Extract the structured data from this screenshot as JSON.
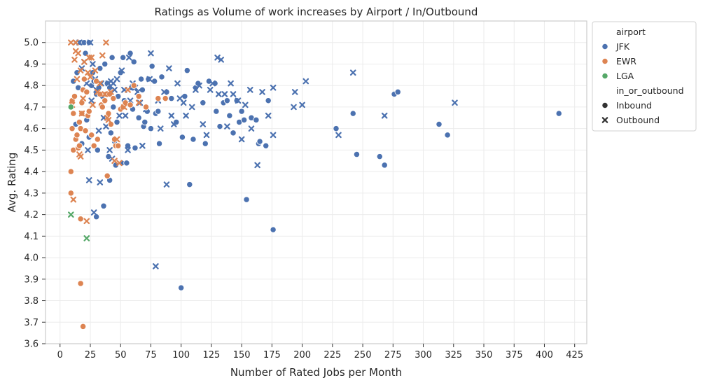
{
  "chart_data": {
    "type": "scatter",
    "title": "Ratings as Volume of work increases by Airport / In/Outbound",
    "xlabel": "Number of Rated Jobs per Month",
    "ylabel": "Avg. Rating",
    "xlim": [
      -12,
      435
    ],
    "ylim": [
      3.6,
      5.1
    ],
    "xticks": [
      0,
      25,
      50,
      75,
      100,
      125,
      150,
      175,
      200,
      225,
      250,
      275,
      300,
      325,
      350,
      375,
      400,
      425
    ],
    "yticks": [
      3.6,
      3.7,
      3.8,
      3.9,
      4.0,
      4.1,
      4.2,
      4.3,
      4.4,
      4.5,
      4.6,
      4.7,
      4.8,
      4.9,
      5.0
    ],
    "grid": true,
    "legend": {
      "placement": "outside-top-right",
      "hue_title": "airport",
      "style_title": "in_or_outbound",
      "hue_entries": [
        {
          "label": "JFK",
          "color": "#4c72b0"
        },
        {
          "label": "EWR",
          "color": "#dd8452"
        },
        {
          "label": "LGA",
          "color": "#55a868"
        }
      ],
      "style_entries": [
        {
          "label": "Inbound",
          "marker": "circle"
        },
        {
          "label": "Outbound",
          "marker": "x"
        }
      ]
    },
    "series": [
      {
        "airport": "JFK",
        "direction": "Inbound",
        "color": "#4c72b0",
        "marker": "circle",
        "points": [
          [
            11,
            4.82
          ],
          [
            13,
            4.62
          ],
          [
            14,
            4.86
          ],
          [
            15,
            4.79
          ],
          [
            17,
            5.0
          ],
          [
            18,
            4.53
          ],
          [
            20,
            5.0
          ],
          [
            21,
            4.95
          ],
          [
            22,
            4.64
          ],
          [
            24,
            5.0
          ],
          [
            24,
            4.56
          ],
          [
            26,
            4.8
          ],
          [
            27,
            4.86
          ],
          [
            28,
            4.82
          ],
          [
            30,
            4.76
          ],
          [
            30,
            4.19
          ],
          [
            31,
            4.5
          ],
          [
            32,
            4.79
          ],
          [
            33,
            4.88
          ],
          [
            35,
            4.75
          ],
          [
            36,
            4.24
          ],
          [
            37,
            4.9
          ],
          [
            39,
            4.81
          ],
          [
            40,
            4.47
          ],
          [
            41,
            4.79
          ],
          [
            41,
            4.36
          ],
          [
            42,
            4.58
          ],
          [
            43,
            4.93
          ],
          [
            44,
            4.7
          ],
          [
            45,
            4.54
          ],
          [
            46,
            4.43
          ],
          [
            47,
            4.63
          ],
          [
            48,
            4.75
          ],
          [
            50,
            4.86
          ],
          [
            51,
            4.44
          ],
          [
            52,
            4.93
          ],
          [
            53,
            4.73
          ],
          [
            55,
            4.44
          ],
          [
            56,
            4.52
          ],
          [
            58,
            4.95
          ],
          [
            59,
            4.79
          ],
          [
            60,
            4.69
          ],
          [
            61,
            4.91
          ],
          [
            62,
            4.51
          ],
          [
            65,
            4.65
          ],
          [
            67,
            4.83
          ],
          [
            68,
            4.78
          ],
          [
            69,
            4.61
          ],
          [
            70,
            4.63
          ],
          [
            72,
            4.68
          ],
          [
            73,
            4.83
          ],
          [
            75,
            4.6
          ],
          [
            76,
            4.89
          ],
          [
            78,
            4.82
          ],
          [
            79,
            4.67
          ],
          [
            81,
            4.68
          ],
          [
            82,
            4.53
          ],
          [
            84,
            4.84
          ],
          [
            88,
            4.77
          ],
          [
            92,
            4.74
          ],
          [
            96,
            4.63
          ],
          [
            100,
            3.86
          ],
          [
            101,
            4.56
          ],
          [
            103,
            4.75
          ],
          [
            105,
            4.87
          ],
          [
            107,
            4.34
          ],
          [
            110,
            4.55
          ],
          [
            112,
            4.79
          ],
          [
            114,
            4.81
          ],
          [
            118,
            4.72
          ],
          [
            120,
            4.53
          ],
          [
            123,
            4.82
          ],
          [
            128,
            4.81
          ],
          [
            129,
            4.68
          ],
          [
            132,
            4.61
          ],
          [
            135,
            4.72
          ],
          [
            138,
            4.73
          ],
          [
            140,
            4.66
          ],
          [
            143,
            4.58
          ],
          [
            146,
            4.73
          ],
          [
            148,
            4.63
          ],
          [
            150,
            4.68
          ],
          [
            152,
            4.64
          ],
          [
            154,
            4.27
          ],
          [
            158,
            4.65
          ],
          [
            162,
            4.64
          ],
          [
            164,
            4.53
          ],
          [
            165,
            4.54
          ],
          [
            170,
            4.52
          ],
          [
            172,
            4.73
          ],
          [
            176,
            4.13
          ],
          [
            228,
            4.6
          ],
          [
            242,
            4.67
          ],
          [
            245,
            4.48
          ],
          [
            264,
            4.47
          ],
          [
            268,
            4.43
          ],
          [
            276,
            4.76
          ],
          [
            279,
            4.77
          ],
          [
            313,
            4.62
          ],
          [
            320,
            4.57
          ],
          [
            412,
            4.67
          ]
        ]
      },
      {
        "airport": "JFK",
        "direction": "Outbound",
        "color": "#4c72b0",
        "marker": "x",
        "points": [
          [
            13,
            5.0
          ],
          [
            16,
            5.0
          ],
          [
            18,
            4.88
          ],
          [
            20,
            4.91
          ],
          [
            22,
            4.81
          ],
          [
            23,
            4.5
          ],
          [
            24,
            4.36
          ],
          [
            25,
            5.0
          ],
          [
            26,
            4.73
          ],
          [
            27,
            4.9
          ],
          [
            28,
            4.21
          ],
          [
            29,
            4.83
          ],
          [
            30,
            4.78
          ],
          [
            32,
            4.59
          ],
          [
            33,
            4.35
          ],
          [
            34,
            4.81
          ],
          [
            36,
            4.65
          ],
          [
            38,
            4.61
          ],
          [
            40,
            4.81
          ],
          [
            41,
            4.5
          ],
          [
            42,
            4.82
          ],
          [
            43,
            4.46
          ],
          [
            44,
            4.81
          ],
          [
            45,
            4.78
          ],
          [
            47,
            4.83
          ],
          [
            49,
            4.66
          ],
          [
            51,
            4.87
          ],
          [
            53,
            4.78
          ],
          [
            54,
            4.66
          ],
          [
            56,
            4.5
          ],
          [
            57,
            4.93
          ],
          [
            58,
            4.73
          ],
          [
            60,
            4.81
          ],
          [
            62,
            4.79
          ],
          [
            64,
            4.77
          ],
          [
            66,
            4.72
          ],
          [
            68,
            4.52
          ],
          [
            71,
            4.69
          ],
          [
            74,
            4.83
          ],
          [
            75,
            4.95
          ],
          [
            79,
            3.96
          ],
          [
            81,
            4.73
          ],
          [
            83,
            4.6
          ],
          [
            86,
            4.77
          ],
          [
            88,
            4.34
          ],
          [
            90,
            4.88
          ],
          [
            92,
            4.66
          ],
          [
            94,
            4.62
          ],
          [
            97,
            4.81
          ],
          [
            99,
            4.74
          ],
          [
            102,
            4.72
          ],
          [
            104,
            4.66
          ],
          [
            109,
            4.7
          ],
          [
            112,
            4.78
          ],
          [
            115,
            4.8
          ],
          [
            118,
            4.62
          ],
          [
            121,
            4.57
          ],
          [
            124,
            4.78
          ],
          [
            126,
            4.81
          ],
          [
            130,
            4.93
          ],
          [
            131,
            4.76
          ],
          [
            133,
            4.92
          ],
          [
            136,
            4.76
          ],
          [
            138,
            4.61
          ],
          [
            141,
            4.81
          ],
          [
            143,
            4.76
          ],
          [
            147,
            4.73
          ],
          [
            150,
            4.55
          ],
          [
            153,
            4.71
          ],
          [
            157,
            4.78
          ],
          [
            158,
            4.6
          ],
          [
            163,
            4.43
          ],
          [
            167,
            4.77
          ],
          [
            172,
            4.66
          ],
          [
            176,
            4.57
          ],
          [
            176,
            4.79
          ],
          [
            193,
            4.7
          ],
          [
            194,
            4.77
          ],
          [
            200,
            4.71
          ],
          [
            203,
            4.82
          ],
          [
            230,
            4.57
          ],
          [
            242,
            4.86
          ],
          [
            268,
            4.66
          ],
          [
            326,
            4.72
          ]
        ]
      },
      {
        "airport": "EWR",
        "direction": "Inbound",
        "color": "#dd8452",
        "marker": "circle",
        "points": [
          [
            9,
            4.4
          ],
          [
            9,
            4.3
          ],
          [
            10,
            4.6
          ],
          [
            10,
            4.73
          ],
          [
            11,
            4.5
          ],
          [
            11,
            4.67
          ],
          [
            12,
            4.75
          ],
          [
            13,
            4.55
          ],
          [
            14,
            4.57
          ],
          [
            15,
            4.51
          ],
          [
            16,
            4.63
          ],
          [
            16,
            4.52
          ],
          [
            17,
            4.18
          ],
          [
            17,
            4.6
          ],
          [
            17,
            3.88
          ],
          [
            18,
            4.67
          ],
          [
            18,
            4.72
          ],
          [
            19,
            3.68
          ],
          [
            19,
            4.78
          ],
          [
            20,
            4.83
          ],
          [
            21,
            4.59
          ],
          [
            22,
            4.77
          ],
          [
            23,
            4.66
          ],
          [
            24,
            4.68
          ],
          [
            26,
            4.57
          ],
          [
            28,
            4.52
          ],
          [
            30,
            4.82
          ],
          [
            31,
            4.55
          ],
          [
            33,
            4.76
          ],
          [
            34,
            4.71
          ],
          [
            35,
            4.7
          ],
          [
            37,
            4.73
          ],
          [
            38,
            4.76
          ],
          [
            39,
            4.38
          ],
          [
            40,
            4.67
          ],
          [
            41,
            4.76
          ],
          [
            42,
            4.62
          ],
          [
            44,
            4.74
          ],
          [
            45,
            4.55
          ],
          [
            46,
            4.52
          ],
          [
            48,
            4.52
          ],
          [
            50,
            4.69
          ],
          [
            52,
            4.7
          ],
          [
            54,
            4.72
          ],
          [
            58,
            4.71
          ],
          [
            61,
            4.8
          ],
          [
            65,
            4.75
          ],
          [
            71,
            4.7
          ],
          [
            81,
            4.74
          ],
          [
            87,
            4.74
          ]
        ]
      },
      {
        "airport": "EWR",
        "direction": "Outbound",
        "color": "#dd8452",
        "marker": "x",
        "points": [
          [
            9,
            5.0
          ],
          [
            10,
            4.71
          ],
          [
            11,
            4.27
          ],
          [
            12,
            4.92
          ],
          [
            13,
            4.96
          ],
          [
            13,
            5.0
          ],
          [
            14,
            4.83
          ],
          [
            15,
            4.95
          ],
          [
            16,
            4.48
          ],
          [
            17,
            4.87
          ],
          [
            17,
            4.47
          ],
          [
            18,
            4.67
          ],
          [
            19,
            4.74
          ],
          [
            20,
            4.91
          ],
          [
            22,
            4.17
          ],
          [
            23,
            4.86
          ],
          [
            24,
            4.93
          ],
          [
            25,
            4.84
          ],
          [
            26,
            4.93
          ],
          [
            27,
            4.71
          ],
          [
            29,
            4.87
          ],
          [
            31,
            4.77
          ],
          [
            33,
            4.81
          ],
          [
            35,
            4.94
          ],
          [
            37,
            4.76
          ],
          [
            38,
            5.0
          ],
          [
            39,
            4.65
          ],
          [
            40,
            4.64
          ],
          [
            42,
            4.77
          ],
          [
            45,
            4.45
          ],
          [
            47,
            4.55
          ],
          [
            49,
            4.44
          ],
          [
            53,
            4.7
          ],
          [
            56,
            4.78
          ],
          [
            65,
            4.72
          ]
        ]
      },
      {
        "airport": "LGA",
        "direction": "Inbound",
        "color": "#55a868",
        "marker": "circle",
        "points": [
          [
            9,
            4.7
          ]
        ]
      },
      {
        "airport": "LGA",
        "direction": "Outbound",
        "color": "#55a868",
        "marker": "x",
        "points": [
          [
            9,
            4.2
          ],
          [
            22,
            4.09
          ]
        ]
      }
    ]
  }
}
